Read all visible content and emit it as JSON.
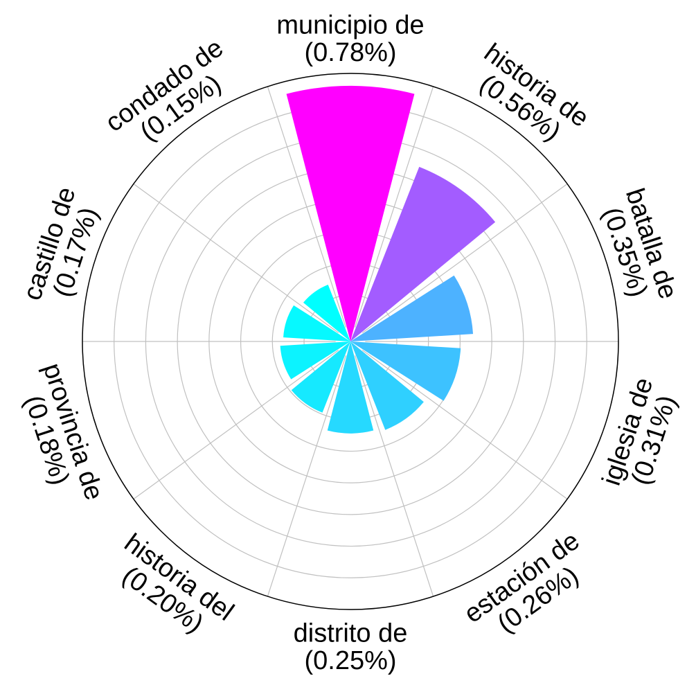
{
  "chart_data": {
    "type": "polar-bar",
    "title": "",
    "grid": true,
    "rmax": 0.82,
    "bars": [
      {
        "category": "municipio de",
        "pct_label": "(0.78%)",
        "value": 0.78,
        "color": "#ff00ff"
      },
      {
        "category": "historia de",
        "pct_label": "(0.56%)",
        "value": 0.56,
        "color": "#a35cff"
      },
      {
        "category": "batalla de",
        "pct_label": "(0.35%)",
        "value": 0.35,
        "color": "#4db2ff"
      },
      {
        "category": "iglesia de",
        "pct_label": "(0.31%)",
        "value": 0.31,
        "color": "#3dc2ff"
      },
      {
        "category": "estación de",
        "pct_label": "(0.26%)",
        "value": 0.26,
        "color": "#2fd0ff"
      },
      {
        "category": "distrito de",
        "pct_label": "(0.25%)",
        "value": 0.25,
        "color": "#26d9ff"
      },
      {
        "category": "historia del",
        "pct_label": "(0.20%)",
        "value": 0.2,
        "color": "#16e9ff"
      },
      {
        "category": "provincia de",
        "pct_label": "(0.18%)",
        "value": 0.18,
        "color": "#0cf3ff"
      },
      {
        "category": "castillo de",
        "pct_label": "(0.17%)",
        "value": 0.17,
        "color": "#06f9ff"
      },
      {
        "category": "condado de",
        "pct_label": "(0.15%)",
        "value": 0.15,
        "color": "#00ffff"
      }
    ]
  }
}
